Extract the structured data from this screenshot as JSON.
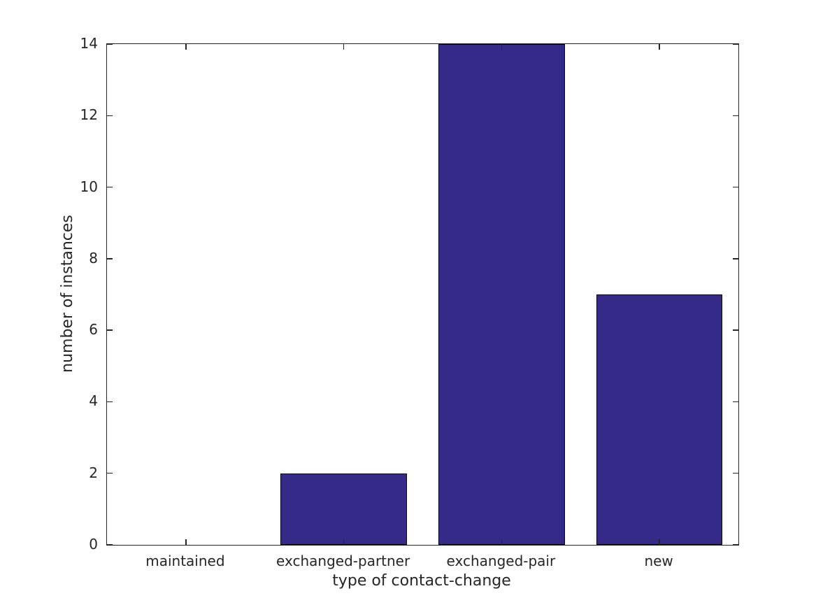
{
  "chart_data": {
    "type": "bar",
    "categories": [
      "maintained",
      "exchanged-partner",
      "exchanged-pair",
      "new"
    ],
    "values": [
      0,
      2,
      14,
      7
    ],
    "title": "",
    "xlabel": "type of contact-change",
    "ylabel": "number of instances",
    "ylim": [
      0,
      14
    ],
    "yticks": [
      0,
      2,
      4,
      6,
      8,
      10,
      12,
      14
    ],
    "bar_color": "#352A87",
    "bar_edge_color": "#000000",
    "axis_color": "#262626",
    "text_color": "#262626",
    "background_color": "#FFFFFF",
    "bar_width_fraction": 0.8,
    "grid": false,
    "legend_position": "none"
  }
}
